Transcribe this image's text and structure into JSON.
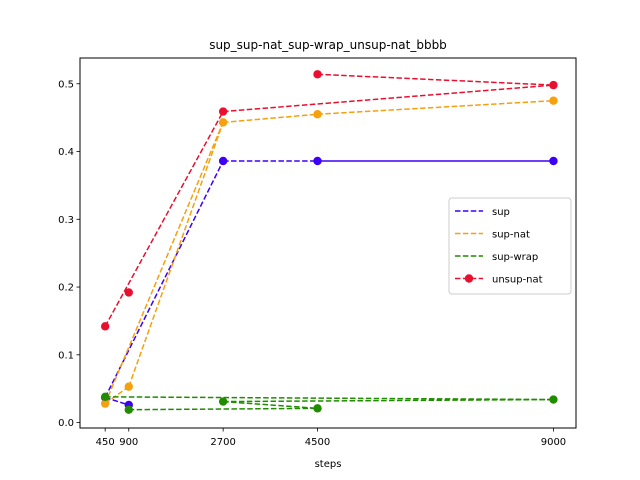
{
  "chart_data": {
    "type": "line",
    "title": "sup_sup-nat_sup-wrap_unsup-nat_bbbb",
    "xlabel": "steps",
    "ylabel": "",
    "xlim": [
      -30,
      9430
    ],
    "ylim": [
      -0.008,
      0.538
    ],
    "x_ticks": [
      450,
      900,
      2700,
      4500,
      9000
    ],
    "x_tick_labels": [
      "450",
      "900",
      "2700",
      "4500",
      "9000"
    ],
    "y_ticks": [
      0.0,
      0.1,
      0.2,
      0.3,
      0.4,
      0.5
    ],
    "y_tick_labels": [
      "0.0",
      "0.1",
      "0.2",
      "0.3",
      "0.4",
      "0.5"
    ],
    "grid": false,
    "legend_position": "center-right",
    "legend": [
      {
        "name": "sup",
        "style": "dashed"
      },
      {
        "name": "sup-nat",
        "style": "dashed"
      },
      {
        "name": "sup-wrap",
        "style": "dashed"
      },
      {
        "name": "unsup-nat",
        "style": "dashed-marker"
      }
    ],
    "series": [
      {
        "name": "sup",
        "color": "#3d00f5",
        "points": [
          [
            450,
            0.037
          ],
          [
            900,
            0.026
          ],
          [
            2700,
            0.386
          ],
          [
            4500,
            0.386
          ],
          [
            9000,
            0.386
          ]
        ],
        "segments": [
          {
            "from": 0,
            "to": 2,
            "dash": true
          },
          {
            "from": 2,
            "to": 3,
            "dash": true
          },
          {
            "from": 3,
            "to": 4,
            "dash": false
          },
          {
            "from": 0,
            "to": 1,
            "dash": true
          }
        ]
      },
      {
        "name": "sup-nat",
        "color": "#f5a00d",
        "points": [
          [
            450,
            0.028
          ],
          [
            900,
            0.053
          ],
          [
            2700,
            0.443
          ],
          [
            4500,
            0.455
          ],
          [
            9000,
            0.475
          ]
        ],
        "segments": [
          {
            "from": 0,
            "to": 1,
            "dash": true
          },
          {
            "from": 0,
            "to": 2,
            "dash": true
          },
          {
            "from": 1,
            "to": 2,
            "dash": true
          },
          {
            "from": 2,
            "to": 3,
            "dash": true
          },
          {
            "from": 3,
            "to": 4,
            "dash": true
          }
        ]
      },
      {
        "name": "sup-wrap",
        "color": "#218c00",
        "points": [
          [
            450,
            0.038
          ],
          [
            900,
            0.019
          ],
          [
            2700,
            0.031
          ],
          [
            4500,
            0.021
          ],
          [
            9000,
            0.034
          ]
        ],
        "segments": [
          {
            "from": 0,
            "to": 4,
            "dash": true
          },
          {
            "from": 1,
            "to": 3,
            "dash": true
          },
          {
            "from": 2,
            "to": 3,
            "dash": true
          },
          {
            "from": 2,
            "to": 4,
            "dash": true
          }
        ]
      },
      {
        "name": "unsup-nat",
        "color": "#e8102e",
        "points": [
          [
            450,
            0.142
          ],
          [
            900,
            0.192
          ],
          [
            2700,
            0.459
          ],
          [
            4500,
            0.514
          ],
          [
            9000,
            0.498
          ]
        ],
        "segments": [
          {
            "from": 0,
            "to": 2,
            "dash": true
          },
          {
            "from": 2,
            "to": 4,
            "dash": true
          },
          {
            "from": 3,
            "to": 4,
            "dash": true
          }
        ]
      }
    ]
  }
}
